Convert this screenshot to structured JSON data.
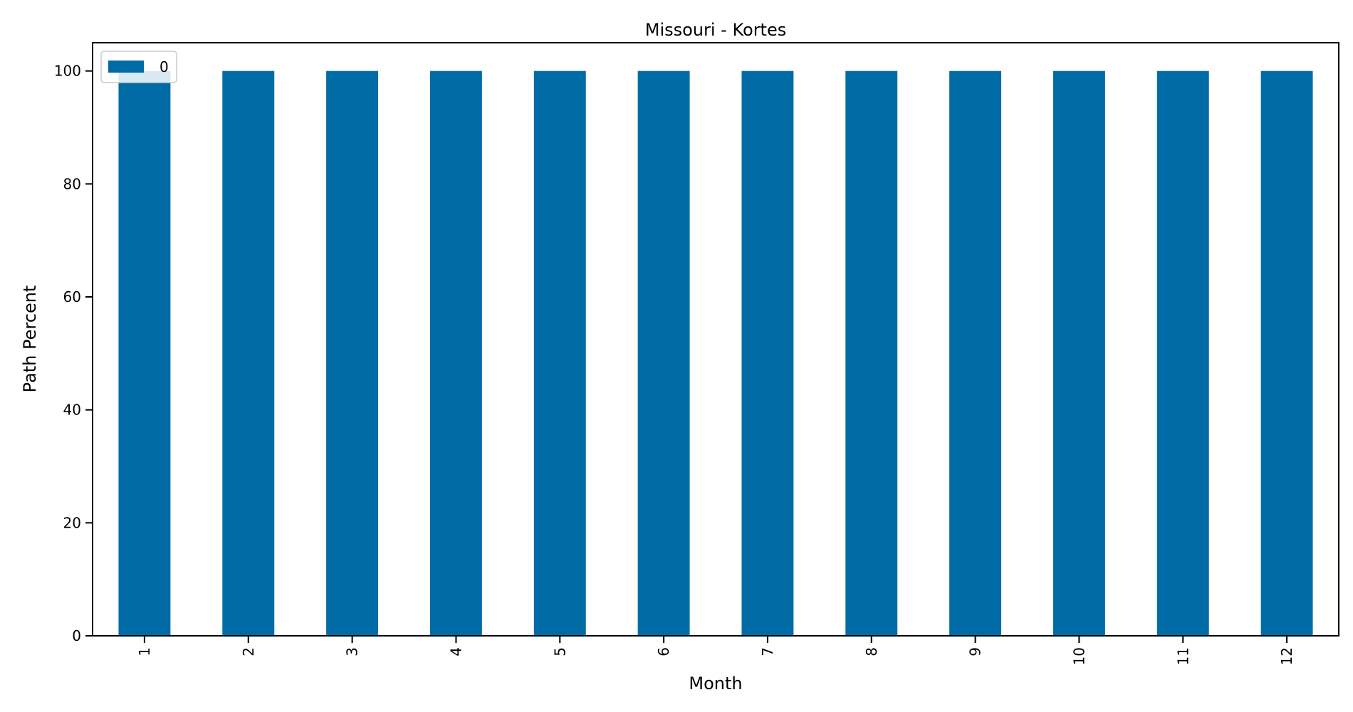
{
  "chart_data": {
    "type": "bar",
    "title": "Missouri - Kortes",
    "xlabel": "Month",
    "ylabel": "Path Percent",
    "categories": [
      "1",
      "2",
      "3",
      "4",
      "5",
      "6",
      "7",
      "8",
      "9",
      "10",
      "11",
      "12"
    ],
    "series": [
      {
        "name": "0",
        "values": [
          100,
          100,
          100,
          100,
          100,
          100,
          100,
          100,
          100,
          100,
          100,
          100
        ]
      }
    ],
    "ylim": [
      0,
      105
    ],
    "yticks": [
      0,
      20,
      40,
      60,
      80,
      100
    ],
    "xtick_rotation": "vertical",
    "grid": false,
    "legend": {
      "position": "top-left"
    },
    "colors": {
      "bar": "#006ba4"
    }
  }
}
